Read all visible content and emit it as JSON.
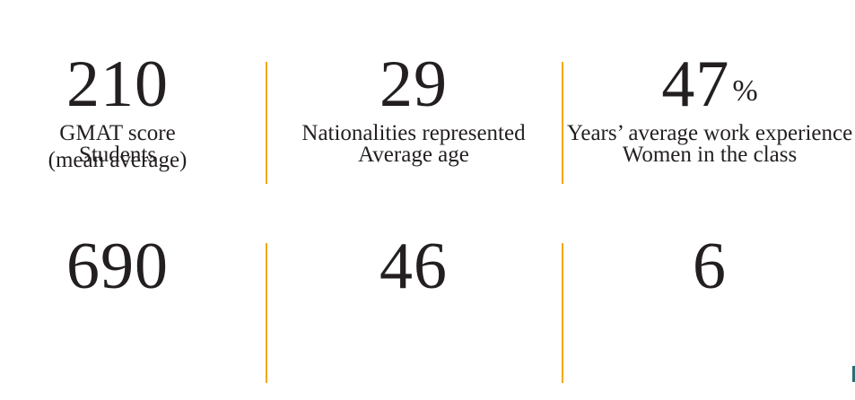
{
  "page": {
    "background": "#FFFFFF"
  },
  "theme": {
    "divider_color": "#F2A71B",
    "text_color": "#231F20",
    "artifact_color": "#2D6F74"
  },
  "stats": [
    {
      "value": "210",
      "suffix": "",
      "label": "Students",
      "label2": ""
    },
    {
      "value": "29",
      "suffix": "",
      "label": "Average age",
      "label2": ""
    },
    {
      "value": "47",
      "suffix": "%",
      "label": "Women in the class",
      "label2": ""
    },
    {
      "value": "690",
      "suffix": "",
      "label": "GMAT score",
      "label2": "(mean average)"
    },
    {
      "value": "46",
      "suffix": "",
      "label": "Nationalities represented",
      "label2": ""
    },
    {
      "value": "6",
      "suffix": "",
      "label": "Years’ average work experience",
      "label2": ""
    }
  ]
}
